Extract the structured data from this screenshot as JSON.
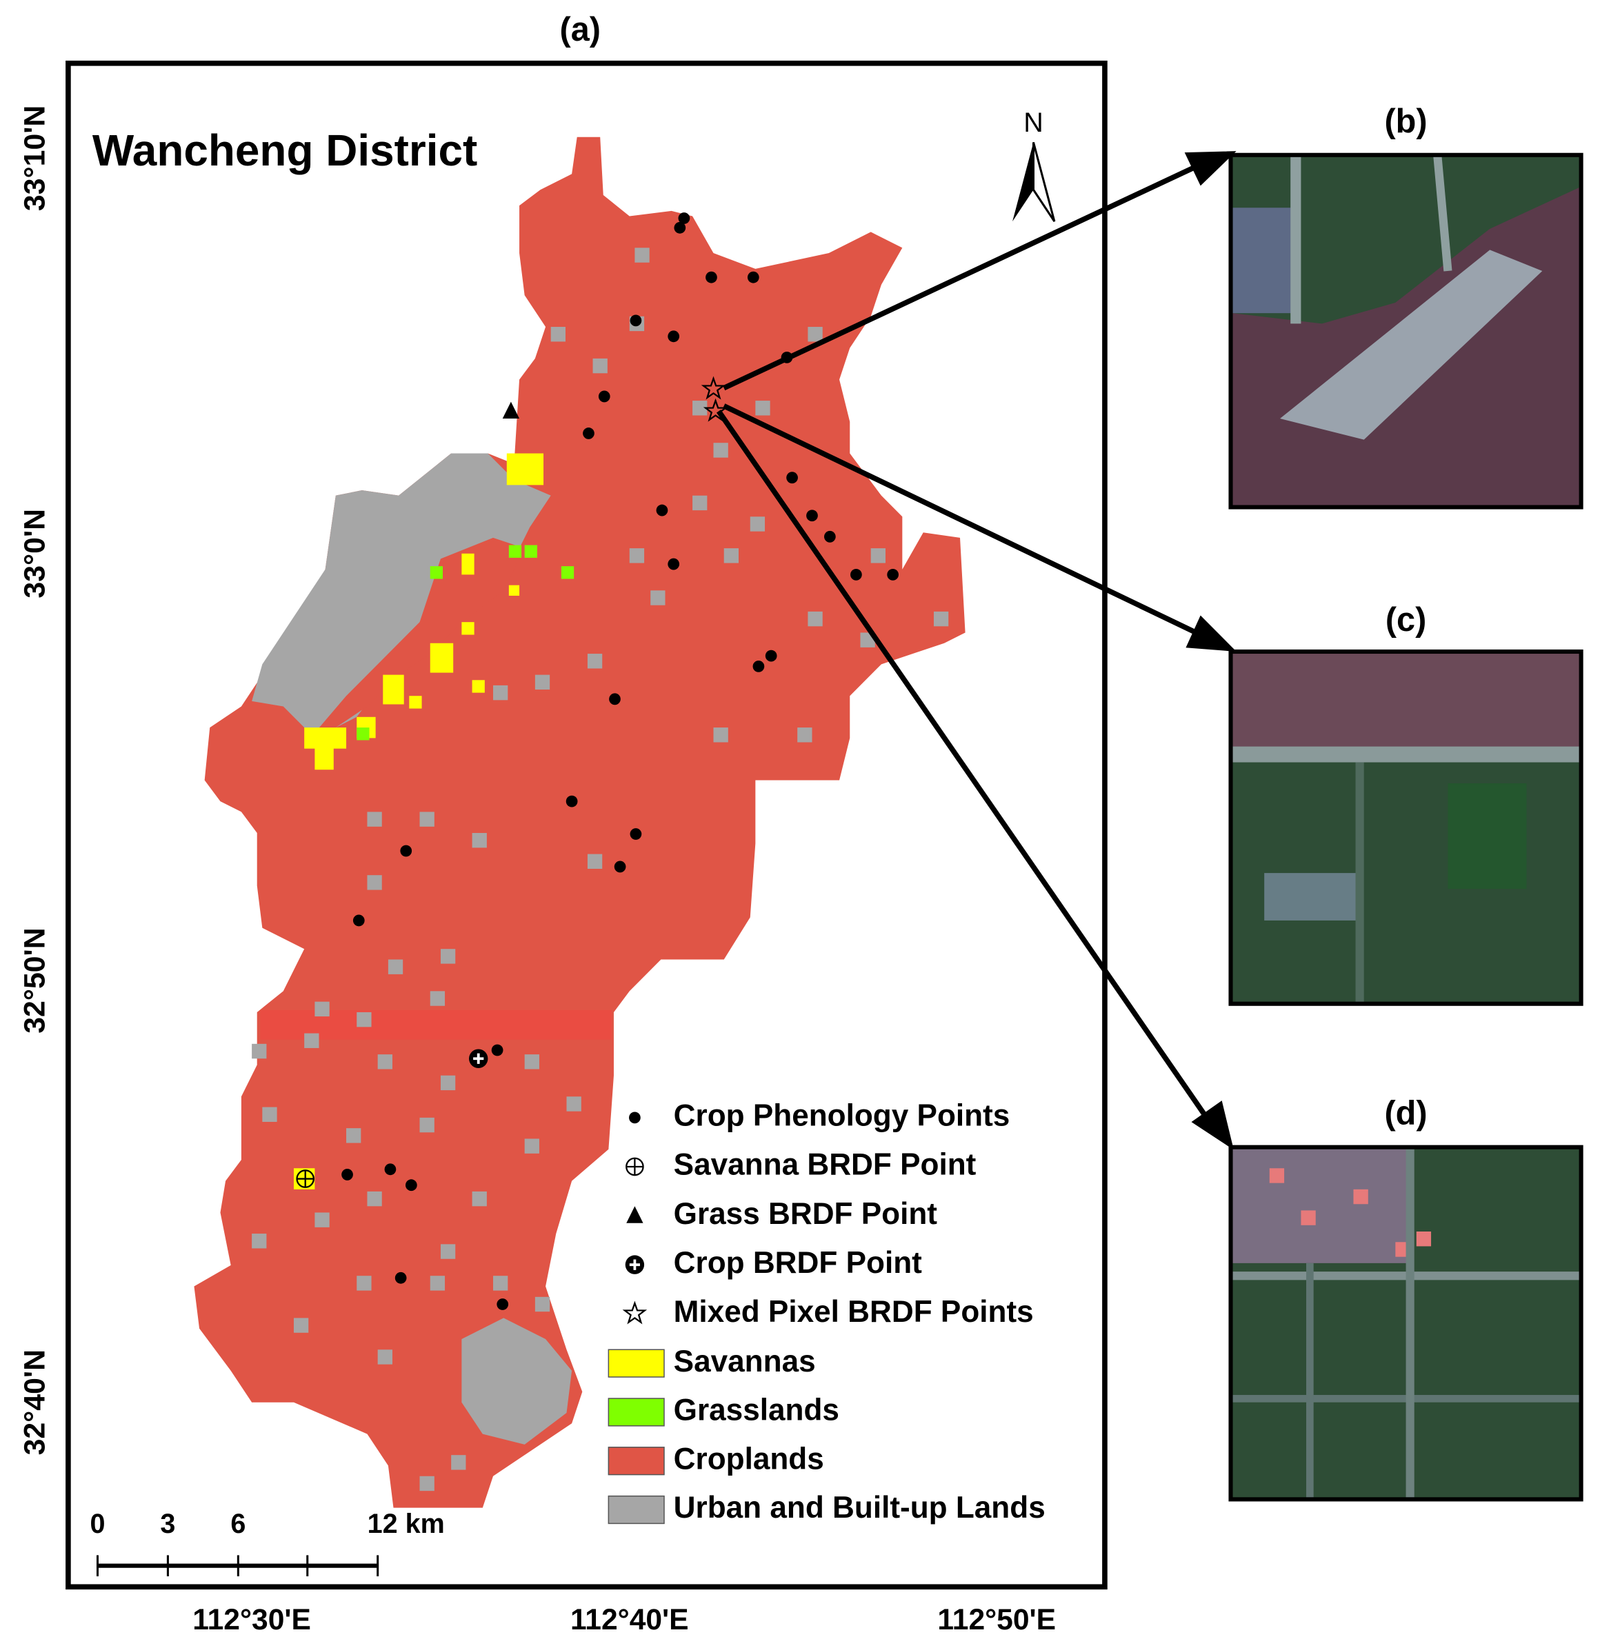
{
  "panels": {
    "a": "(a)",
    "b": "(b)",
    "c": "(c)",
    "d": "(d)"
  },
  "map": {
    "title": "Wancheng District",
    "north": "N",
    "lat_labels": [
      "33°10'N",
      "33°0'N",
      "32°50'N",
      "32°40'N"
    ],
    "lon_labels": [
      "112°30'E",
      "112°40'E",
      "112°50'E"
    ],
    "scale_labels": [
      "0",
      "3",
      "6",
      "12 km"
    ]
  },
  "legend": [
    {
      "label": "Crop Phenology Points"
    },
    {
      "label": "Savanna BRDF Point"
    },
    {
      "label": "Grass BRDF Point"
    },
    {
      "label": "Crop BRDF Point"
    },
    {
      "label": "Mixed Pixel BRDF Points"
    },
    {
      "label": "Savannas",
      "color": "#ffff00"
    },
    {
      "label": "Grasslands",
      "color": "#7fff00"
    },
    {
      "label": "Croplands",
      "color": "#e05546"
    },
    {
      "label": "Urban and Built-up Lands",
      "color": "#a6a6a6"
    }
  ]
}
